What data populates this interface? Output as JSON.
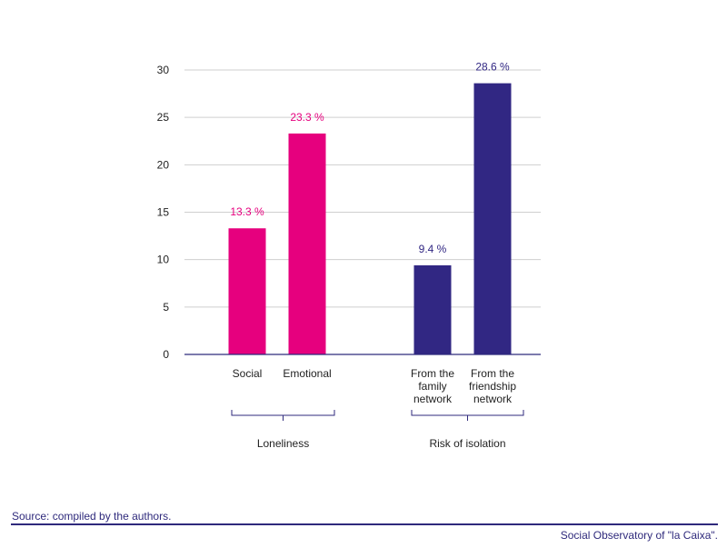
{
  "chart_data": {
    "type": "bar",
    "ylim": [
      0,
      30
    ],
    "yticks": [
      0,
      5,
      10,
      15,
      20,
      25,
      30
    ],
    "grid": true,
    "bars": [
      {
        "category": [
          "Social"
        ],
        "value": 13.3,
        "label": "13.3 %",
        "color": "#e6007e",
        "group": 0
      },
      {
        "category": [
          "Emotional"
        ],
        "value": 23.3,
        "label": "23.3 %",
        "color": "#e6007e",
        "group": 0
      },
      {
        "category": [
          "From the",
          "family",
          "network"
        ],
        "value": 9.4,
        "label": "9.4 %",
        "color": "#312783",
        "group": 1
      },
      {
        "category": [
          "From the",
          "friendship",
          "network"
        ],
        "value": 28.6,
        "label": "28.6 %",
        "color": "#312783",
        "group": 1
      }
    ],
    "groups": [
      {
        "name": "Loneliness"
      },
      {
        "name": "Risk of isolation"
      }
    ]
  },
  "footer": {
    "source": "Source: compiled by the authors.",
    "credit": "Social Observatory of \"la Caixa\"."
  }
}
